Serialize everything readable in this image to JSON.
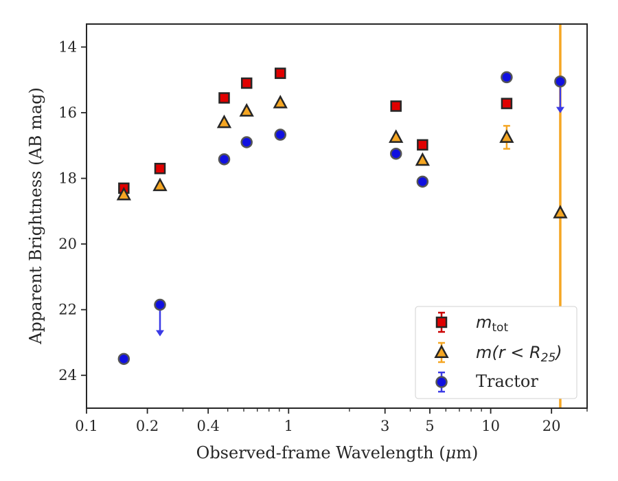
{
  "chart_data": {
    "type": "scatter",
    "xscale": "log",
    "xlim": [
      0.1,
      30
    ],
    "ylim": [
      25,
      13.3
    ],
    "y_inverted": true,
    "xlabel_prefix": "Observed-frame Wavelength (",
    "xlabel_mu": "μ",
    "xlabel_suffix": "m)",
    "ylabel": "Apparent Brightness (AB mag)",
    "xticks": [
      {
        "value": 0.1,
        "label": "0.1"
      },
      {
        "value": 0.2,
        "label": "0.2"
      },
      {
        "value": 0.4,
        "label": "0.4"
      },
      {
        "value": 1,
        "label": "1"
      },
      {
        "value": 3,
        "label": "3"
      },
      {
        "value": 5,
        "label": "5"
      },
      {
        "value": 10,
        "label": "10"
      },
      {
        "value": 20,
        "label": "20"
      }
    ],
    "xminor": [
      0.3,
      0.5,
      0.6,
      0.7,
      0.8,
      0.9,
      2,
      4,
      6,
      7,
      8,
      9,
      30
    ],
    "yticks": [
      14,
      16,
      18,
      20,
      22,
      24
    ],
    "vline": {
      "x": 22.1,
      "color": "#f5a623"
    },
    "series": [
      {
        "name": "m_tot",
        "legend_base": "m",
        "legend_sub": "tot",
        "marker": "square",
        "fill": "#e00000",
        "errcolor": "#cc0000",
        "points": [
          {
            "x": 0.153,
            "y": 18.3
          },
          {
            "x": 0.231,
            "y": 17.7
          },
          {
            "x": 0.48,
            "y": 15.55
          },
          {
            "x": 0.62,
            "y": 15.1
          },
          {
            "x": 0.91,
            "y": 14.8
          },
          {
            "x": 3.4,
            "y": 15.8
          },
          {
            "x": 4.6,
            "y": 16.98
          },
          {
            "x": 12.0,
            "y": 15.72
          }
        ]
      },
      {
        "name": "m(r<R25)",
        "legend_base": "m(r < R",
        "legend_sub": "25",
        "legend_end": ")",
        "marker": "triangle",
        "fill": "#f5a623",
        "errcolor": "#f5a623",
        "points": [
          {
            "x": 0.153,
            "y": 18.5
          },
          {
            "x": 0.231,
            "y": 18.22
          },
          {
            "x": 0.48,
            "y": 16.3
          },
          {
            "x": 0.62,
            "y": 15.95
          },
          {
            "x": 0.91,
            "y": 15.7
          },
          {
            "x": 3.4,
            "y": 16.75
          },
          {
            "x": 4.6,
            "y": 17.45
          },
          {
            "x": 12.0,
            "y": 16.75,
            "yerr": 0.35
          },
          {
            "x": 22.1,
            "y": 19.05
          }
        ]
      },
      {
        "name": "Tractor",
        "legend_label": "Tractor",
        "marker": "circle",
        "fill": "#1010e0",
        "errcolor": "#3a3ae6",
        "points": [
          {
            "x": 0.153,
            "y": 23.5
          },
          {
            "x": 0.231,
            "y": 21.85,
            "upper_limit": true
          },
          {
            "x": 0.48,
            "y": 17.42
          },
          {
            "x": 0.62,
            "y": 16.9
          },
          {
            "x": 0.91,
            "y": 16.67
          },
          {
            "x": 3.4,
            "y": 17.25
          },
          {
            "x": 4.6,
            "y": 18.1
          },
          {
            "x": 12.0,
            "y": 14.92
          },
          {
            "x": 22.1,
            "y": 15.05,
            "upper_limit": true
          }
        ]
      }
    ],
    "legend_location": "lower right"
  }
}
